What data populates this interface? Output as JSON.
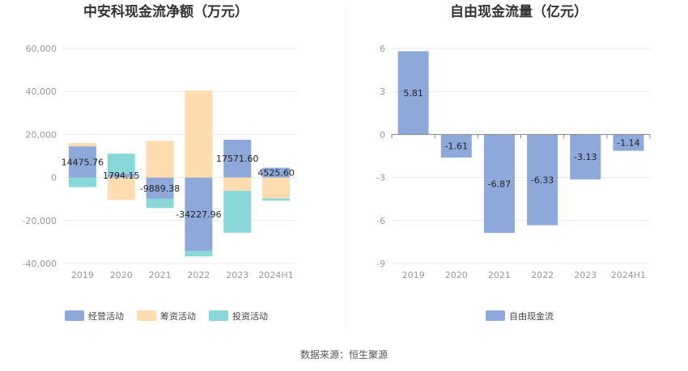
{
  "source_text": "数据来源：恒生聚源",
  "chart_data": [
    {
      "type": "bar",
      "stacked": true,
      "title": "中安科现金流净额（万元）",
      "categories": [
        "2019",
        "2020",
        "2021",
        "2022",
        "2023",
        "2024H1"
      ],
      "ylim": [
        -40000,
        60000
      ],
      "yticks": [
        60000,
        40000,
        20000,
        0,
        -20000,
        -40000
      ],
      "ytick_labels": [
        "60,000",
        "40,000",
        "20,000",
        "0",
        "-20,000",
        "-40,000"
      ],
      "grid": true,
      "legend_position": "bottom",
      "series": [
        {
          "name": "经营活动",
          "color": "#8DA8D9",
          "values": [
            14475.76,
            1794.15,
            -9889.38,
            -34227.96,
            17571.6,
            4525.6
          ],
          "labels": [
            "14475.76",
            "1794.15",
            "-9889.38",
            "-34227.96",
            "17571.60",
            "4525.60"
          ]
        },
        {
          "name": "筹资活动",
          "color": "#FDDDAF",
          "values": [
            1500,
            -10500,
            17000,
            40500,
            -6200,
            -9800
          ]
        },
        {
          "name": "投资活动",
          "color": "#88D8D8",
          "values": [
            -4500,
            9300,
            -4300,
            -2500,
            -19500,
            -1000
          ]
        }
      ]
    },
    {
      "type": "bar",
      "title": "自由现金流量（亿元）",
      "categories": [
        "2019",
        "2020",
        "2021",
        "2022",
        "2023",
        "2024H1"
      ],
      "ylim": [
        -9,
        6
      ],
      "yticks": [
        6,
        3,
        0,
        -3,
        -6,
        -9
      ],
      "ytick_labels": [
        "6",
        "3",
        "0",
        "-3",
        "-6",
        "-9"
      ],
      "grid": true,
      "legend_position": "bottom",
      "series": [
        {
          "name": "自由现金流",
          "color": "#8DA8D9",
          "values": [
            5.81,
            -1.61,
            -6.87,
            -6.33,
            -3.13,
            -1.14
          ],
          "labels": [
            "5.81",
            "-1.61",
            "-6.87",
            "-6.33",
            "-3.13",
            "-1.14"
          ]
        }
      ]
    }
  ]
}
